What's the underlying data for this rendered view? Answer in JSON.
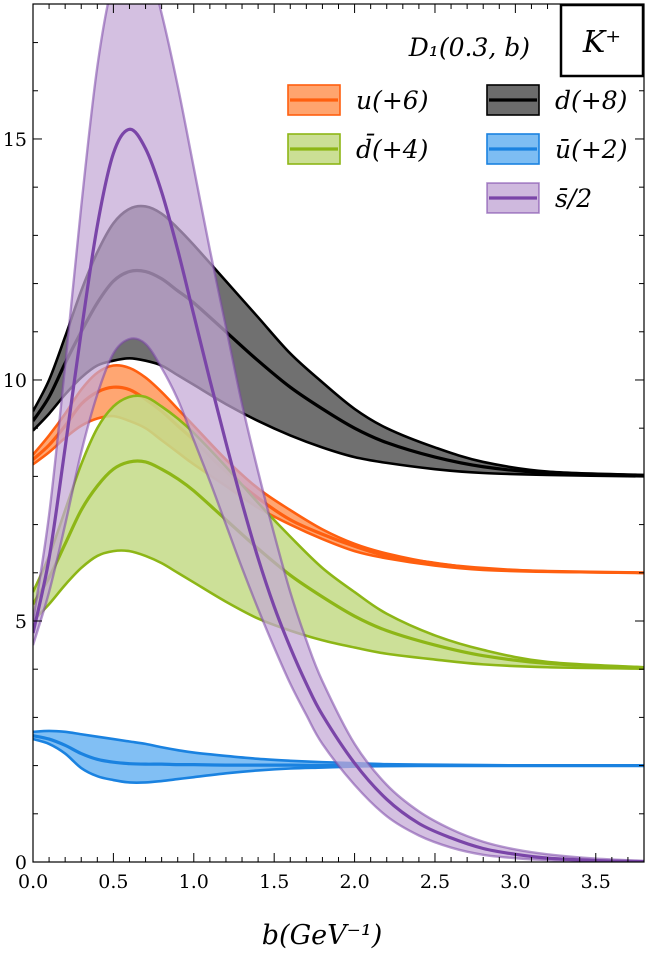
{
  "chart_data": {
    "type": "line",
    "title": "",
    "xlabel": "b(GeV⁻¹)",
    "ylabel": "",
    "xlim": [
      0,
      3.8
    ],
    "ylim": [
      0,
      17.8
    ],
    "x_ticks": [
      0,
      0.5,
      1.0,
      1.5,
      2.0,
      2.5,
      3.0,
      3.5
    ],
    "x_tick_labels": [
      "0.0",
      "0.5",
      "1.0",
      "1.5",
      "2.0",
      "2.5",
      "3.0",
      "3.5"
    ],
    "y_ticks": [
      0,
      5,
      10,
      15
    ],
    "y_tick_labels": [
      "0",
      "5",
      "10",
      "15"
    ],
    "legend_title": "D₁(0.3, b)",
    "legend_placement": "top-right",
    "tag": "K⁺",
    "grid": false,
    "series": [
      {
        "name": "u(+6)",
        "color": "#ff5f0f",
        "fill": "#ff9a5e",
        "x": [
          0.0,
          0.1,
          0.2,
          0.3,
          0.4,
          0.5,
          0.6,
          0.7,
          0.8,
          0.9,
          1.0,
          1.2,
          1.4,
          1.6,
          1.8,
          2.0,
          2.2,
          2.5,
          2.8,
          3.2,
          3.8
        ],
        "lower": [
          8.25,
          8.5,
          8.8,
          9.05,
          9.2,
          9.25,
          9.15,
          9.0,
          8.75,
          8.5,
          8.25,
          7.8,
          7.35,
          7.0,
          6.7,
          6.45,
          6.3,
          6.15,
          6.06,
          6.02,
          6.0
        ],
        "mid": [
          8.35,
          8.65,
          9.05,
          9.5,
          9.75,
          9.85,
          9.8,
          9.6,
          9.35,
          9.05,
          8.75,
          8.1,
          7.55,
          7.1,
          6.8,
          6.55,
          6.35,
          6.2,
          6.08,
          6.03,
          6.0
        ],
        "upper": [
          8.45,
          8.85,
          9.3,
          9.8,
          10.15,
          10.3,
          10.25,
          10.05,
          9.75,
          9.4,
          9.05,
          8.35,
          7.75,
          7.3,
          6.9,
          6.6,
          6.4,
          6.2,
          6.1,
          6.03,
          6.0
        ]
      },
      {
        "name": "d(+8)",
        "color": "#000000",
        "fill": "#5c5c5c",
        "x": [
          0.0,
          0.1,
          0.2,
          0.3,
          0.4,
          0.5,
          0.6,
          0.7,
          0.8,
          0.9,
          1.0,
          1.2,
          1.4,
          1.6,
          1.8,
          2.0,
          2.2,
          2.5,
          2.8,
          3.2,
          3.8
        ],
        "lower": [
          8.95,
          9.3,
          9.7,
          10.05,
          10.3,
          10.4,
          10.45,
          10.4,
          10.3,
          10.1,
          9.9,
          9.5,
          9.15,
          8.85,
          8.6,
          8.4,
          8.28,
          8.15,
          8.07,
          8.03,
          8.0
        ],
        "mid": [
          9.15,
          9.65,
          10.35,
          11.0,
          11.6,
          12.05,
          12.25,
          12.25,
          12.1,
          11.85,
          11.6,
          11.0,
          10.4,
          9.85,
          9.4,
          9.0,
          8.7,
          8.4,
          8.2,
          8.07,
          8.02
        ],
        "upper": [
          9.35,
          10.0,
          10.9,
          11.85,
          12.65,
          13.25,
          13.55,
          13.6,
          13.45,
          13.15,
          12.8,
          12.05,
          11.3,
          10.55,
          9.95,
          9.4,
          9.0,
          8.6,
          8.3,
          8.1,
          8.03
        ]
      },
      {
        "name": "d̄(+4)",
        "color": "#8db616",
        "fill": "#c5dc8a",
        "x": [
          0.0,
          0.1,
          0.2,
          0.3,
          0.4,
          0.5,
          0.6,
          0.7,
          0.8,
          0.9,
          1.0,
          1.2,
          1.4,
          1.6,
          1.8,
          2.0,
          2.2,
          2.5,
          2.8,
          3.2,
          3.8
        ],
        "lower": [
          5.0,
          5.35,
          5.75,
          6.1,
          6.35,
          6.45,
          6.45,
          6.35,
          6.2,
          6.0,
          5.8,
          5.4,
          5.05,
          4.8,
          4.6,
          4.45,
          4.32,
          4.2,
          4.1,
          4.04,
          4.01
        ],
        "mid": [
          5.35,
          5.9,
          6.6,
          7.3,
          7.8,
          8.15,
          8.3,
          8.3,
          8.15,
          7.95,
          7.7,
          7.1,
          6.5,
          5.95,
          5.5,
          5.1,
          4.8,
          4.5,
          4.28,
          4.12,
          4.03
        ],
        "upper": [
          5.6,
          6.35,
          7.3,
          8.25,
          9.0,
          9.45,
          9.65,
          9.65,
          9.45,
          9.2,
          8.9,
          8.2,
          7.45,
          6.75,
          6.1,
          5.6,
          5.15,
          4.7,
          4.4,
          4.15,
          4.04
        ]
      },
      {
        "name": "ū(+2)",
        "color": "#1a82e0",
        "fill": "#6fb6f2",
        "x": [
          0.0,
          0.1,
          0.2,
          0.3,
          0.4,
          0.5,
          0.6,
          0.7,
          0.8,
          0.9,
          1.0,
          1.2,
          1.4,
          1.6,
          1.8,
          2.0,
          2.2,
          2.5,
          2.8,
          3.2,
          3.8
        ],
        "lower": [
          2.55,
          2.45,
          2.25,
          1.95,
          1.78,
          1.7,
          1.65,
          1.65,
          1.68,
          1.72,
          1.76,
          1.84,
          1.9,
          1.94,
          1.96,
          1.98,
          1.99,
          2.0,
          2.0,
          2.0,
          2.0
        ],
        "mid": [
          2.62,
          2.55,
          2.42,
          2.25,
          2.13,
          2.07,
          2.04,
          2.03,
          2.03,
          2.02,
          2.02,
          2.01,
          2.01,
          2.01,
          2.0,
          2.0,
          2.0,
          2.0,
          2.0,
          2.0,
          2.0
        ],
        "upper": [
          2.7,
          2.72,
          2.7,
          2.65,
          2.6,
          2.55,
          2.5,
          2.45,
          2.38,
          2.32,
          2.27,
          2.2,
          2.14,
          2.1,
          2.07,
          2.05,
          2.03,
          2.02,
          2.01,
          2.0,
          2.0
        ]
      },
      {
        "name": "s̄/2",
        "color": "#7a45a8",
        "fill": "#c3a7d6",
        "x": [
          0.0,
          0.1,
          0.2,
          0.3,
          0.4,
          0.5,
          0.6,
          0.7,
          0.8,
          0.9,
          1.0,
          1.1,
          1.2,
          1.3,
          1.4,
          1.5,
          1.6,
          1.7,
          1.8,
          2.0,
          2.2,
          2.4,
          2.6,
          2.8,
          3.0,
          3.2,
          3.5,
          3.8
        ],
        "lower": [
          4.5,
          5.6,
          7.0,
          8.5,
          9.7,
          10.55,
          10.85,
          10.75,
          10.25,
          9.6,
          8.75,
          7.9,
          7.0,
          6.1,
          5.25,
          4.45,
          3.7,
          3.05,
          2.45,
          1.6,
          0.95,
          0.55,
          0.3,
          0.15,
          0.08,
          0.04,
          0.01,
          0.0
        ],
        "mid": [
          4.75,
          6.3,
          8.6,
          11.0,
          13.2,
          14.7,
          15.2,
          14.8,
          13.9,
          12.7,
          11.35,
          10.0,
          8.7,
          7.45,
          6.3,
          5.3,
          4.45,
          3.7,
          3.05,
          2.05,
          1.3,
          0.8,
          0.5,
          0.28,
          0.16,
          0.08,
          0.03,
          0.01
        ],
        "upper": [
          5.0,
          7.2,
          10.3,
          13.6,
          16.5,
          18.3,
          19.0,
          18.8,
          17.6,
          16.1,
          14.4,
          12.7,
          11.1,
          9.5,
          8.1,
          6.8,
          5.6,
          4.6,
          3.75,
          2.45,
          1.6,
          1.05,
          0.68,
          0.42,
          0.26,
          0.16,
          0.07,
          0.02
        ]
      }
    ]
  }
}
